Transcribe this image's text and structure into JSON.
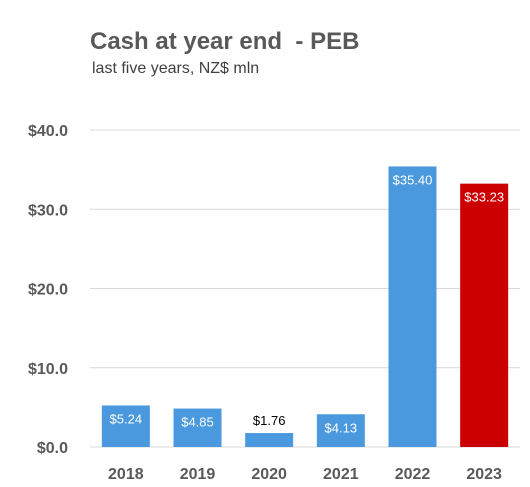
{
  "chart_data": {
    "type": "bar",
    "title": "Cash at year end  - PEB",
    "subtitle": "last five years, NZ$ mln",
    "categories": [
      "2018",
      "2019",
      "2020",
      "2021",
      "2022",
      "2023"
    ],
    "values": [
      5.24,
      4.85,
      1.76,
      4.13,
      35.4,
      33.23
    ],
    "data_labels": [
      "$5.24",
      "$4.85",
      "$1.76",
      "$4.13",
      "$35.40",
      "$33.23"
    ],
    "bar_colors": [
      "#4a98dd",
      "#4a98dd",
      "#4a98dd",
      "#4a98dd",
      "#4a98dd",
      "#cc0000"
    ],
    "label_colors": [
      "#ffffff",
      "#ffffff",
      "#000000",
      "#ffffff",
      "#ffffff",
      "#ffffff"
    ],
    "label_positions": [
      "inside",
      "inside",
      "outside",
      "inside",
      "inside",
      "inside"
    ],
    "ylim": [
      0,
      40
    ],
    "yticks": [
      0,
      10,
      20,
      30,
      40
    ],
    "ytick_labels": [
      "$0.0",
      "$10.0",
      "$20.0",
      "$30.0",
      "$40.0"
    ],
    "grid": true,
    "grid_color": "#d9d9d9",
    "legend": "none"
  }
}
